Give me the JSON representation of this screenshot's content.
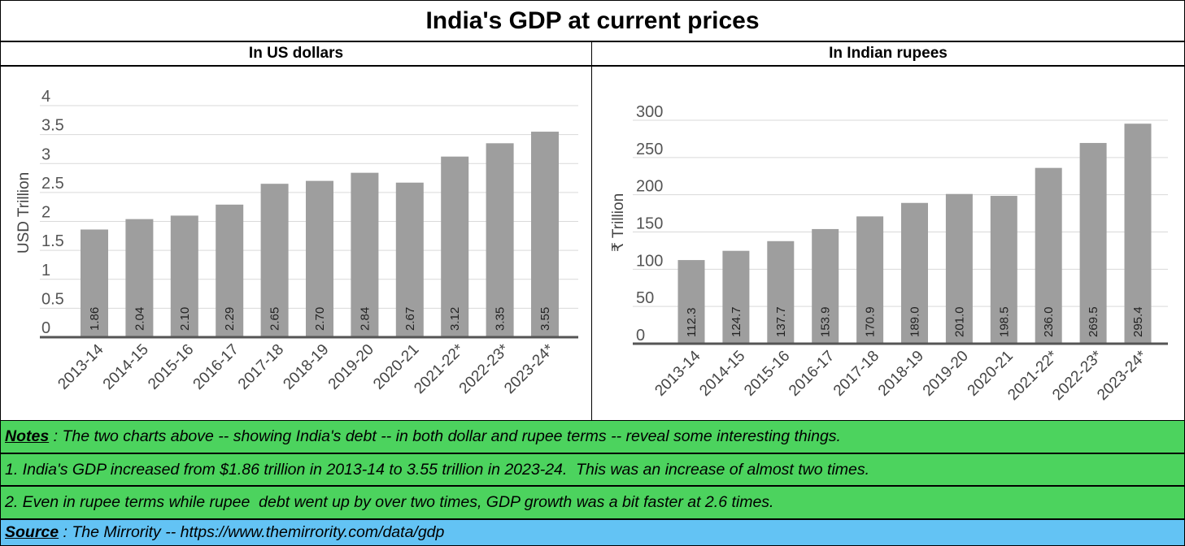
{
  "title": "India's GDP at current prices",
  "left_header": "In US dollars",
  "right_header": "In Indian rupees",
  "notes": {
    "lead": "Notes",
    "text": " : The two charts above -- showing India's debt -- in both dollar and rupee terms -- reveal some interesting things.",
    "line1": "1. India's GDP increased from $1.86 trillion in 2013-14 to 3.55 trillion in 2023-24.  This was an increase of almost two times.",
    "line2": "2. Even in rupee terms while rupee  debt went up by over two times, GDP growth was a bit faster at 2.6 times."
  },
  "source": {
    "lead": "Source",
    "text": " : The Mirrority -- https://www.themirrority.com/data/gdp"
  },
  "colors": {
    "bar": "#9e9e9e",
    "grid": "#d9d9d9",
    "axis": "#555555",
    "notes_bg": "#4cd35e",
    "source_bg": "#63c3f4"
  },
  "chart_data": [
    {
      "type": "bar",
      "title": "In US dollars",
      "xlabel": "",
      "ylabel": "USD Trillion",
      "categories": [
        "2013-14",
        "2014-15",
        "2015-16",
        "2016-17",
        "2017-18",
        "2018-19",
        "2019-20",
        "2020-21",
        "2021-22*",
        "2022-23*",
        "2023-24*"
      ],
      "values": [
        1.86,
        2.04,
        2.1,
        2.29,
        2.65,
        2.7,
        2.84,
        2.67,
        3.12,
        3.35,
        3.55
      ],
      "data_labels": [
        "1.86",
        "2.04",
        "2.10",
        "2.29",
        "2.65",
        "2.70",
        "2.84",
        "2.67",
        "3.12",
        "3.35",
        "3.55"
      ],
      "yticks": [
        "0",
        "0.5",
        "1",
        "1.5",
        "2",
        "2.5",
        "3",
        "3.5",
        "4"
      ],
      "ylim": [
        0,
        4
      ],
      "grid": true
    },
    {
      "type": "bar",
      "title": "In Indian rupees",
      "xlabel": "",
      "ylabel": "₹ Trillion",
      "categories": [
        "2013-14",
        "2014-15",
        "2015-16",
        "2016-17",
        "2017-18",
        "2018-19",
        "2019-20",
        "2020-21",
        "2021-22*",
        "2022-23*",
        "2023-24*"
      ],
      "values": [
        112.3,
        124.7,
        137.7,
        153.9,
        170.9,
        189.0,
        201.0,
        198.5,
        236.0,
        269.5,
        295.4
      ],
      "data_labels": [
        "112.3",
        "124.7",
        "137.7",
        "153.9",
        "170.9",
        "189.0",
        "201.0",
        "198.5",
        "236.0",
        "269.5",
        "295.4"
      ],
      "yticks": [
        "0",
        "50",
        "100",
        "150",
        "200",
        "250",
        "300"
      ],
      "ylim": [
        0,
        300
      ],
      "grid": true
    }
  ]
}
